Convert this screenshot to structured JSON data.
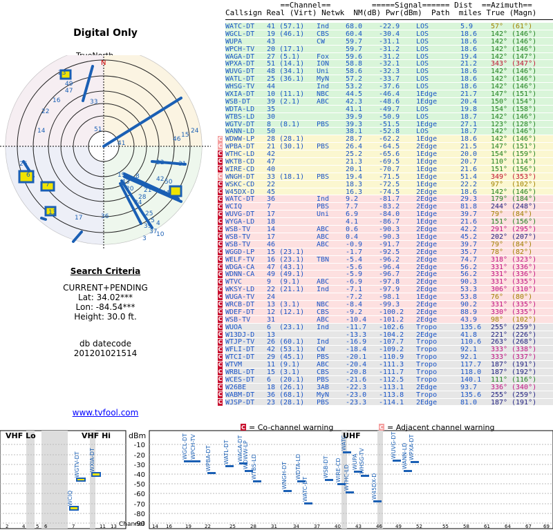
{
  "title": "Digital Only",
  "true_north": "TrueNorth",
  "north_marker": "N",
  "search": {
    "heading": "Search Criteria",
    "mode": "CURRENT+PENDING",
    "lat": "Lat: 34.02***",
    "lon": "Lon: -84.54***",
    "height": "Height: 30.0 ft."
  },
  "db": {
    "label": "db datecode",
    "value": "201201021514"
  },
  "website": "www.tvfool.com",
  "table_header": {
    "line1": "            ==Channel==         =====Signal====== Dist  ==Azimuth==",
    "line2": "Callsign Real (Virt) Netwk  NM(dB) Pwr(dBm)  Path  miles True (Magn)"
  },
  "rows": [
    {
      "call": "WATC-DT",
      "real": "41",
      "virt": "(57.1)",
      "net": "Ind",
      "nm": "68.0",
      "pwr": "-22.9",
      "path": "LOS",
      "dist": "5.9",
      "true": "57°",
      "magn": "(61°)",
      "bg": "#d9f5d9",
      "tc": "#a08000",
      "warn": ""
    },
    {
      "call": "WGCL-DT",
      "real": "19",
      "virt": "(46.1)",
      "net": "CBS",
      "nm": "60.4",
      "pwr": "-30.4",
      "path": "LOS",
      "dist": "18.6",
      "true": "142°",
      "magn": "(146°)",
      "bg": "#d9f5d9",
      "tc": "#208020",
      "warn": ""
    },
    {
      "call": "WUPA",
      "real": "43",
      "virt": "",
      "net": "CW",
      "nm": "59.7",
      "pwr": "-31.1",
      "path": "LOS",
      "dist": "18.6",
      "true": "142°",
      "magn": "(146°)",
      "bg": "#d9f5d9",
      "tc": "#208020",
      "warn": ""
    },
    {
      "call": "WPCH-TV",
      "real": "20",
      "virt": "(17.1)",
      "net": "",
      "nm": "59.7",
      "pwr": "-31.2",
      "path": "LOS",
      "dist": "18.6",
      "true": "142°",
      "magn": "(146°)",
      "bg": "#d9f5d9",
      "tc": "#208020",
      "warn": ""
    },
    {
      "call": "WAGA-DT",
      "real": "27",
      "virt": "(5.1)",
      "net": "Fox",
      "nm": "59.6",
      "pwr": "-31.2",
      "path": "LOS",
      "dist": "19.4",
      "true": "142°",
      "magn": "(147°)",
      "bg": "#d9f5d9",
      "tc": "#208020",
      "warn": ""
    },
    {
      "call": "WPXA-DT",
      "real": "51",
      "virt": "(14.1)",
      "net": "ION",
      "nm": "58.8",
      "pwr": "-32.1",
      "path": "LOS",
      "dist": "21.2",
      "true": "343°",
      "magn": "(347°)",
      "bg": "#d9f5d9",
      "tc": "#c01030",
      "warn": ""
    },
    {
      "call": "WUVG-DT",
      "real": "48",
      "virt": "(34.1)",
      "net": "Uni",
      "nm": "58.6",
      "pwr": "-32.3",
      "path": "LOS",
      "dist": "18.6",
      "true": "142°",
      "magn": "(146°)",
      "bg": "#d9f5d9",
      "tc": "#208020",
      "warn": ""
    },
    {
      "call": "WATL-DT",
      "real": "25",
      "virt": "(36.1)",
      "net": "MyN",
      "nm": "57.2",
      "pwr": "-33.7",
      "path": "LOS",
      "dist": "18.6",
      "true": "142°",
      "magn": "(146°)",
      "bg": "#d9f5d9",
      "tc": "#208020",
      "warn": ""
    },
    {
      "call": "WHSG-TV",
      "real": "44",
      "virt": "",
      "net": "Ind",
      "nm": "53.2",
      "pwr": "-37.6",
      "path": "LOS",
      "dist": "18.6",
      "true": "142°",
      "magn": "(146°)",
      "bg": "#d9f5d9",
      "tc": "#208020",
      "warn": ""
    },
    {
      "call": "WXIA-DT",
      "real": "10",
      "virt": "(11.1)",
      "net": "NBC",
      "nm": "44.5",
      "pwr": "-46.4",
      "path": "1Edge",
      "dist": "21.7",
      "true": "147°",
      "magn": "(151°)",
      "bg": "#d9f5d9",
      "tc": "#208020",
      "warn": ""
    },
    {
      "call": "WSB-DT",
      "real": "39",
      "virt": "(2.1)",
      "net": "ABC",
      "nm": "42.3",
      "pwr": "-48.6",
      "path": "1Edge",
      "dist": "20.4",
      "true": "150°",
      "magn": "(154°)",
      "bg": "#d9f5d9",
      "tc": "#208020",
      "warn": ""
    },
    {
      "call": "WDTA-LD",
      "real": "35",
      "virt": "",
      "net": "",
      "nm": "41.1",
      "pwr": "-49.7",
      "path": "LOS",
      "dist": "19.8",
      "true": "154°",
      "magn": "(158°)",
      "bg": "#d9f5d9",
      "tc": "#208020",
      "warn": ""
    },
    {
      "call": "WTBS-LD",
      "real": "30",
      "virt": "",
      "net": "",
      "nm": "39.9",
      "pwr": "-50.9",
      "path": "LOS",
      "dist": "18.7",
      "true": "142°",
      "magn": "(146°)",
      "bg": "#d9f5d9",
      "tc": "#208020",
      "warn": ""
    },
    {
      "call": "WGTV-DT",
      "real": "8",
      "virt": "(8.1)",
      "net": "PBS",
      "nm": "39.3",
      "pwr": "-51.5",
      "path": "1Edge",
      "dist": "27.1",
      "true": "123°",
      "magn": "(128°)",
      "bg": "#d9f5d9",
      "tc": "#208020",
      "warn": ""
    },
    {
      "call": "WANN-LD",
      "real": "50",
      "virt": "",
      "net": "",
      "nm": "38.1",
      "pwr": "-52.8",
      "path": "LOS",
      "dist": "18.7",
      "true": "142°",
      "magn": "(146°)",
      "bg": "#d9f5d9",
      "tc": "#208020",
      "warn": ""
    },
    {
      "call": "WDWW-LP",
      "real": "28",
      "virt": "(28.1)",
      "net": "",
      "nm": "28.7",
      "pwr": "-62.2",
      "path": "1Edge",
      "dist": "18.6",
      "true": "142°",
      "magn": "(146°)",
      "bg": "#fbf7d0",
      "tc": "#208020",
      "warn": "a"
    },
    {
      "call": "WPBA-DT",
      "real": "21",
      "virt": "(30.1)",
      "net": "PBS",
      "nm": "26.4",
      "pwr": "-64.5",
      "path": "2Edge",
      "dist": "21.5",
      "true": "147°",
      "magn": "(151°)",
      "bg": "#fbf7d0",
      "tc": "#208020",
      "warn": "a"
    },
    {
      "call": "WTHC-LD",
      "real": "42",
      "virt": "",
      "net": "",
      "nm": "25.2",
      "pwr": "-65.6",
      "path": "1Edge",
      "dist": "20.0",
      "true": "154°",
      "magn": "(159°)",
      "bg": "#fbf7d0",
      "tc": "#208020",
      "warn": "c"
    },
    {
      "call": "WKTB-CD",
      "real": "47",
      "virt": "",
      "net": "",
      "nm": "21.3",
      "pwr": "-69.5",
      "path": "1Edge",
      "dist": "20.7",
      "true": "110°",
      "magn": "(114°)",
      "bg": "#fbf7d0",
      "tc": "#208020",
      "warn": "c"
    },
    {
      "call": "WIRE-CD",
      "real": "40",
      "virt": "",
      "net": "",
      "nm": "20.1",
      "pwr": "-70.7",
      "path": "1Edge",
      "dist": "21.6",
      "true": "151°",
      "magn": "(156°)",
      "bg": "#fbf7d0",
      "tc": "#208020",
      "warn": "c"
    },
    {
      "call": "WNGH-DT",
      "real": "33",
      "virt": "(18.1)",
      "net": "PBS",
      "nm": "19.4",
      "pwr": "-71.5",
      "path": "1Edge",
      "dist": "51.4",
      "true": "349°",
      "magn": "(353°)",
      "bg": "#fbf7d0",
      "tc": "#c01030",
      "warn": "a"
    },
    {
      "call": "WSKC-CD",
      "real": "22",
      "virt": "",
      "net": "",
      "nm": "18.3",
      "pwr": "-72.5",
      "path": "1Edge",
      "dist": "22.2",
      "true": "97°",
      "magn": "(102°)",
      "bg": "#fbf7d0",
      "tc": "#a08000",
      "warn": "c"
    },
    {
      "call": "W45DX-D",
      "real": "45",
      "virt": "",
      "net": "",
      "nm": "16.3",
      "pwr": "-74.5",
      "path": "2Edge",
      "dist": "18.6",
      "true": "142°",
      "magn": "(146°)",
      "bg": "#fbf7d0",
      "tc": "#208020",
      "warn": "c"
    },
    {
      "call": "WATC-DT",
      "real": "36",
      "virt": "",
      "net": "Ind",
      "nm": "9.2",
      "pwr": "-81.7",
      "path": "2Edge",
      "dist": "29.3",
      "true": "179°",
      "magn": "(184°)",
      "bg": "#fde0e0",
      "tc": "#208020",
      "warn": "c"
    },
    {
      "call": "WCIQ",
      "real": "7",
      "virt": "",
      "net": "PBS",
      "nm": "7.7",
      "pwr": "-83.2",
      "path": "2Edge",
      "dist": "81.8",
      "true": "244°",
      "magn": "(248°)",
      "bg": "#fde0e0",
      "tc": "#202080",
      "warn": "c"
    },
    {
      "call": "WUVG-DT",
      "real": "17",
      "virt": "",
      "net": "Uni",
      "nm": "6.9",
      "pwr": "-84.0",
      "path": "1Edge",
      "dist": "39.7",
      "true": "79°",
      "magn": "(84°)",
      "bg": "#fde0e0",
      "tc": "#a08000",
      "warn": "c"
    },
    {
      "call": "WYGA-LD",
      "real": "18",
      "virt": "",
      "net": "",
      "nm": "4.1",
      "pwr": "-86.7",
      "path": "1Edge",
      "dist": "21.6",
      "true": "151°",
      "magn": "(156°)",
      "bg": "#fde0e0",
      "tc": "#208020",
      "warn": "c"
    },
    {
      "call": "WSB-TV",
      "real": "14",
      "virt": "",
      "net": "ABC",
      "nm": "0.6",
      "pwr": "-90.3",
      "path": "2Edge",
      "dist": "42.2",
      "true": "291°",
      "magn": "(295°)",
      "bg": "#fde0e0",
      "tc": "#c01080",
      "warn": "c"
    },
    {
      "call": "WSB-TV",
      "real": "17",
      "virt": "",
      "net": "ABC",
      "nm": "0.4",
      "pwr": "-90.3",
      "path": "1Edge",
      "dist": "45.2",
      "true": "202°",
      "magn": "(207°)",
      "bg": "#fde0e0",
      "tc": "#202080",
      "warn": "c"
    },
    {
      "call": "WSB-TV",
      "real": "46",
      "virt": "",
      "net": "ABC",
      "nm": "-0.9",
      "pwr": "-91.7",
      "path": "2Edge",
      "dist": "39.7",
      "true": "79°",
      "magn": "(84°)",
      "bg": "#fde0e0",
      "tc": "#a08000",
      "warn": "c"
    },
    {
      "call": "WGGD-LP",
      "real": "15",
      "virt": "(23.1)",
      "net": "",
      "nm": "-1.7",
      "pwr": "-92.5",
      "path": "2Edge",
      "dist": "35.7",
      "true": "78°",
      "magn": "(82°)",
      "bg": "#fde0e0",
      "tc": "#a08000",
      "warn": "c"
    },
    {
      "call": "WELF-TV",
      "real": "16",
      "virt": "(23.1)",
      "net": "TBN",
      "nm": "-5.4",
      "pwr": "-96.2",
      "path": "2Edge",
      "dist": "74.7",
      "true": "318°",
      "magn": "(323°)",
      "bg": "#fde0e0",
      "tc": "#c01080",
      "warn": "c"
    },
    {
      "call": "WDGA-CA",
      "real": "47",
      "virt": "(43.1)",
      "net": "",
      "nm": "-5.6",
      "pwr": "-96.4",
      "path": "2Edge",
      "dist": "56.2",
      "true": "331°",
      "magn": "(336°)",
      "bg": "#fde0e0",
      "tc": "#c01080",
      "warn": "c"
    },
    {
      "call": "WDNN-CA",
      "real": "49",
      "virt": "(49.1)",
      "net": "",
      "nm": "-5.9",
      "pwr": "-96.7",
      "path": "2Edge",
      "dist": "56.2",
      "true": "331°",
      "magn": "(336°)",
      "bg": "#fde0e0",
      "tc": "#c01080",
      "warn": "c"
    },
    {
      "call": "WTVC",
      "real": "9",
      "virt": "(9.1)",
      "net": "ABC",
      "nm": "-6.9",
      "pwr": "-97.8",
      "path": "2Edge",
      "dist": "90.3",
      "true": "331°",
      "magn": "(335°)",
      "bg": "#fde0e0",
      "tc": "#c01080",
      "warn": "c"
    },
    {
      "call": "WKSY-LD",
      "real": "22",
      "virt": "(21.1)",
      "net": "Ind",
      "nm": "-7.1",
      "pwr": "-97.9",
      "path": "2Edge",
      "dist": "53.3",
      "true": "306°",
      "magn": "(310°)",
      "bg": "#fde0e0",
      "tc": "#c01080",
      "warn": "c"
    },
    {
      "call": "WUGA-TV",
      "real": "24",
      "virt": "",
      "net": "",
      "nm": "-7.2",
      "pwr": "-98.1",
      "path": "1Edge",
      "dist": "53.8",
      "true": "76°",
      "magn": "(80°)",
      "bg": "#fde0e0",
      "tc": "#a08000",
      "warn": "c"
    },
    {
      "call": "WRCB-DT",
      "real": "13",
      "virt": "(3.1)",
      "net": "NBC",
      "nm": "-8.4",
      "pwr": "-99.3",
      "path": "2Edge",
      "dist": "90.2",
      "true": "331°",
      "magn": "(335°)",
      "bg": "#fde0e0",
      "tc": "#c01080",
      "warn": "c"
    },
    {
      "call": "WDEF-DT",
      "real": "12",
      "virt": "(12.1)",
      "net": "CBS",
      "nm": "-9.2",
      "pwr": "-100.2",
      "path": "2Edge",
      "dist": "88.9",
      "true": "330°",
      "magn": "(335°)",
      "bg": "#fde0e0",
      "tc": "#c01080",
      "warn": "c"
    },
    {
      "call": "WSB-TV",
      "real": "31",
      "virt": "",
      "net": "ABC",
      "nm": "-10.4",
      "pwr": "-101.2",
      "path": "2Edge",
      "dist": "43.9",
      "true": "98°",
      "magn": "(102°)",
      "bg": "#fde0e0",
      "tc": "#a08000",
      "warn": "c"
    },
    {
      "call": "WUOA",
      "real": "6",
      "virt": "(23.1)",
      "net": "Ind",
      "nm": "-11.7",
      "pwr": "-102.6",
      "path": "Tropo",
      "dist": "135.6",
      "true": "255°",
      "magn": "(259°)",
      "bg": "#e6e6e6",
      "tc": "#202080",
      "warn": "c"
    },
    {
      "call": "W13DJ-D",
      "real": "13",
      "virt": "",
      "net": "",
      "nm": "-13.3",
      "pwr": "-104.2",
      "path": "2Edge",
      "dist": "41.8",
      "true": "221°",
      "magn": "(226°)",
      "bg": "#e6e6e6",
      "tc": "#202080",
      "warn": "c"
    },
    {
      "call": "WTJP-TV",
      "real": "26",
      "virt": "(60.1)",
      "net": "Ind",
      "nm": "-16.9",
      "pwr": "-107.7",
      "path": "Tropo",
      "dist": "110.6",
      "true": "263°",
      "magn": "(268°)",
      "bg": "#e6e6e6",
      "tc": "#202080",
      "warn": "c"
    },
    {
      "call": "WFLI-DT",
      "real": "42",
      "virt": "(53.1)",
      "net": "CW",
      "nm": "-18.4",
      "pwr": "-109.2",
      "path": "Tropo",
      "dist": "92.1",
      "true": "333°",
      "magn": "(338°)",
      "bg": "#e6e6e6",
      "tc": "#c01080",
      "warn": "c"
    },
    {
      "call": "WTCI-DT",
      "real": "29",
      "virt": "(45.1)",
      "net": "PBS",
      "nm": "-20.1",
      "pwr": "-110.9",
      "path": "Tropo",
      "dist": "92.1",
      "true": "333°",
      "magn": "(337°)",
      "bg": "#e6e6e6",
      "tc": "#c01080",
      "warn": "c"
    },
    {
      "call": "WTVM",
      "real": "11",
      "virt": "(9.1)",
      "net": "ABC",
      "nm": "-20.4",
      "pwr": "-111.3",
      "path": "Tropo",
      "dist": "117.7",
      "true": "187°",
      "magn": "(191°)",
      "bg": "#e6e6e6",
      "tc": "#202080",
      "warn": "c"
    },
    {
      "call": "WRBL-DT",
      "real": "15",
      "virt": "(3.1)",
      "net": "CBS",
      "nm": "-20.8",
      "pwr": "-111.7",
      "path": "Tropo",
      "dist": "118.0",
      "true": "187°",
      "magn": "(192°)",
      "bg": "#e6e6e6",
      "tc": "#202080",
      "warn": "c"
    },
    {
      "call": "WCES-DT",
      "real": "6",
      "virt": "(20.1)",
      "net": "PBS",
      "nm": "-21.6",
      "pwr": "-112.5",
      "path": "Tropo",
      "dist": "140.1",
      "true": "111°",
      "magn": "(116°)",
      "bg": "#e6e6e6",
      "tc": "#208020",
      "warn": "c"
    },
    {
      "call": "W26BE",
      "real": "18",
      "virt": "(26.1)",
      "net": "3AB",
      "nm": "-22.3",
      "pwr": "-113.1",
      "path": "2Edge",
      "dist": "93.7",
      "true": "336°",
      "magn": "(340°)",
      "bg": "#e6e6e6",
      "tc": "#c01080",
      "warn": "c"
    },
    {
      "call": "WABM-DT",
      "real": "36",
      "virt": "(68.1)",
      "net": "MyN",
      "nm": "-23.0",
      "pwr": "-113.8",
      "path": "Tropo",
      "dist": "135.6",
      "true": "255°",
      "magn": "(259°)",
      "bg": "#e6e6e6",
      "tc": "#202080",
      "warn": "c"
    },
    {
      "call": "WJSP-DT",
      "real": "23",
      "virt": "(28.1)",
      "net": "PBS",
      "nm": "-23.3",
      "pwr": "-114.1",
      "path": "2Edge",
      "dist": "81.0",
      "true": "187°",
      "magn": "(191°)",
      "bg": "#e6e6e6",
      "tc": "#202080",
      "warn": "c"
    }
  ],
  "legend": {
    "cochannel": "= Co-channel warning",
    "adjacent": "= Adjacent channel warning",
    "c_glyph": "C"
  },
  "spectrum": {
    "vhf_lo": "VHF Lo",
    "vhf_hi": "VHF Hi",
    "uhf": "UHF",
    "dbm": "dBm",
    "channel": "Channel",
    "dbm_ticks": [
      "-10",
      "-20",
      "-30",
      "-40",
      "-50",
      "-60",
      "-70",
      "-80",
      "-90"
    ],
    "lo_channels": [
      "2",
      "4",
      "5",
      "6"
    ],
    "hi_channels": [
      "7",
      "11",
      "13"
    ],
    "uhf_channels": [
      "14",
      "16",
      "19",
      "22",
      "25",
      "28",
      "31",
      "34",
      "37",
      "40",
      "43",
      "46",
      "49",
      "52",
      "55",
      "58",
      "61",
      "64",
      "67",
      "69"
    ]
  },
  "radar_labels": [
    "51",
    "33",
    "22",
    "16",
    "14",
    "26",
    "6",
    "7",
    "13",
    "17",
    "36",
    "41",
    "19",
    "43",
    "8",
    "20",
    "25",
    "28",
    "49",
    "47",
    "23",
    "24",
    "15",
    "46",
    "31",
    "10",
    "3",
    "4",
    "37",
    "39",
    "5",
    "34",
    "21",
    "42",
    "50",
    "44",
    "22"
  ]
}
